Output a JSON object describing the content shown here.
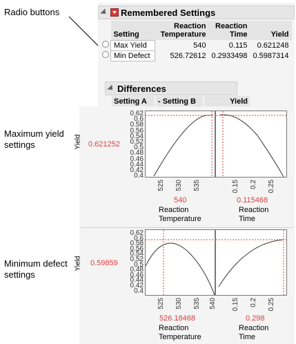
{
  "callouts": {
    "radio_buttons": "Radio buttons",
    "max_yield": [
      "Maximum yield",
      "settings"
    ],
    "min_defect": [
      "Minimum defect",
      "settings"
    ]
  },
  "remembered": {
    "title": "Remembered Settings",
    "columns": [
      "Setting",
      "Reaction Temperature",
      "Reaction Time",
      "Yield"
    ],
    "rows": [
      {
        "setting": "Max Yield",
        "temp": "540",
        "time": "0.115",
        "yield": "0.621248"
      },
      {
        "setting": "Min Defect",
        "temp": "526.72612",
        "time": "0.2933498",
        "yield": "0.5987314"
      }
    ]
  },
  "differences": {
    "title": "Differences",
    "columns": [
      "Setting A",
      "- Setting B",
      "Yield"
    ]
  },
  "profiler_max": {
    "y_label": "Yield",
    "y_value": "0.621252",
    "y_ticks": [
      "0.62",
      "0.6",
      "0.58",
      "0.56",
      "0.54",
      "0.52",
      "0.5",
      "0.48",
      "0.46",
      "0.44",
      "0.42",
      "0.4"
    ],
    "temp": {
      "ticks": [
        "525",
        "530",
        "535"
      ],
      "value": "540",
      "label": [
        "Reaction",
        "Temperature"
      ]
    },
    "time": {
      "ticks": [
        "0.15",
        "0.2",
        "0.25"
      ],
      "value": "0.115468",
      "label": [
        "Reaction",
        "Time"
      ]
    }
  },
  "profiler_min": {
    "y_label": "Yield",
    "y_value": "0.59859",
    "y_ticks": [
      "0.62",
      "0.6",
      "0.58",
      "0.56",
      "0.54",
      "0.52",
      "0.5",
      "0.48",
      "0.46",
      "0.44",
      "0.42",
      "0.4"
    ],
    "temp": {
      "ticks": [
        "525",
        "530",
        "535",
        "540"
      ],
      "value": "526.18468",
      "label": [
        "Reaction",
        "Temperature"
      ]
    },
    "time": {
      "ticks": [
        "0.15",
        "0.2",
        "0.25"
      ],
      "value": "0.298",
      "label": [
        "Reaction",
        "Time"
      ]
    }
  }
}
